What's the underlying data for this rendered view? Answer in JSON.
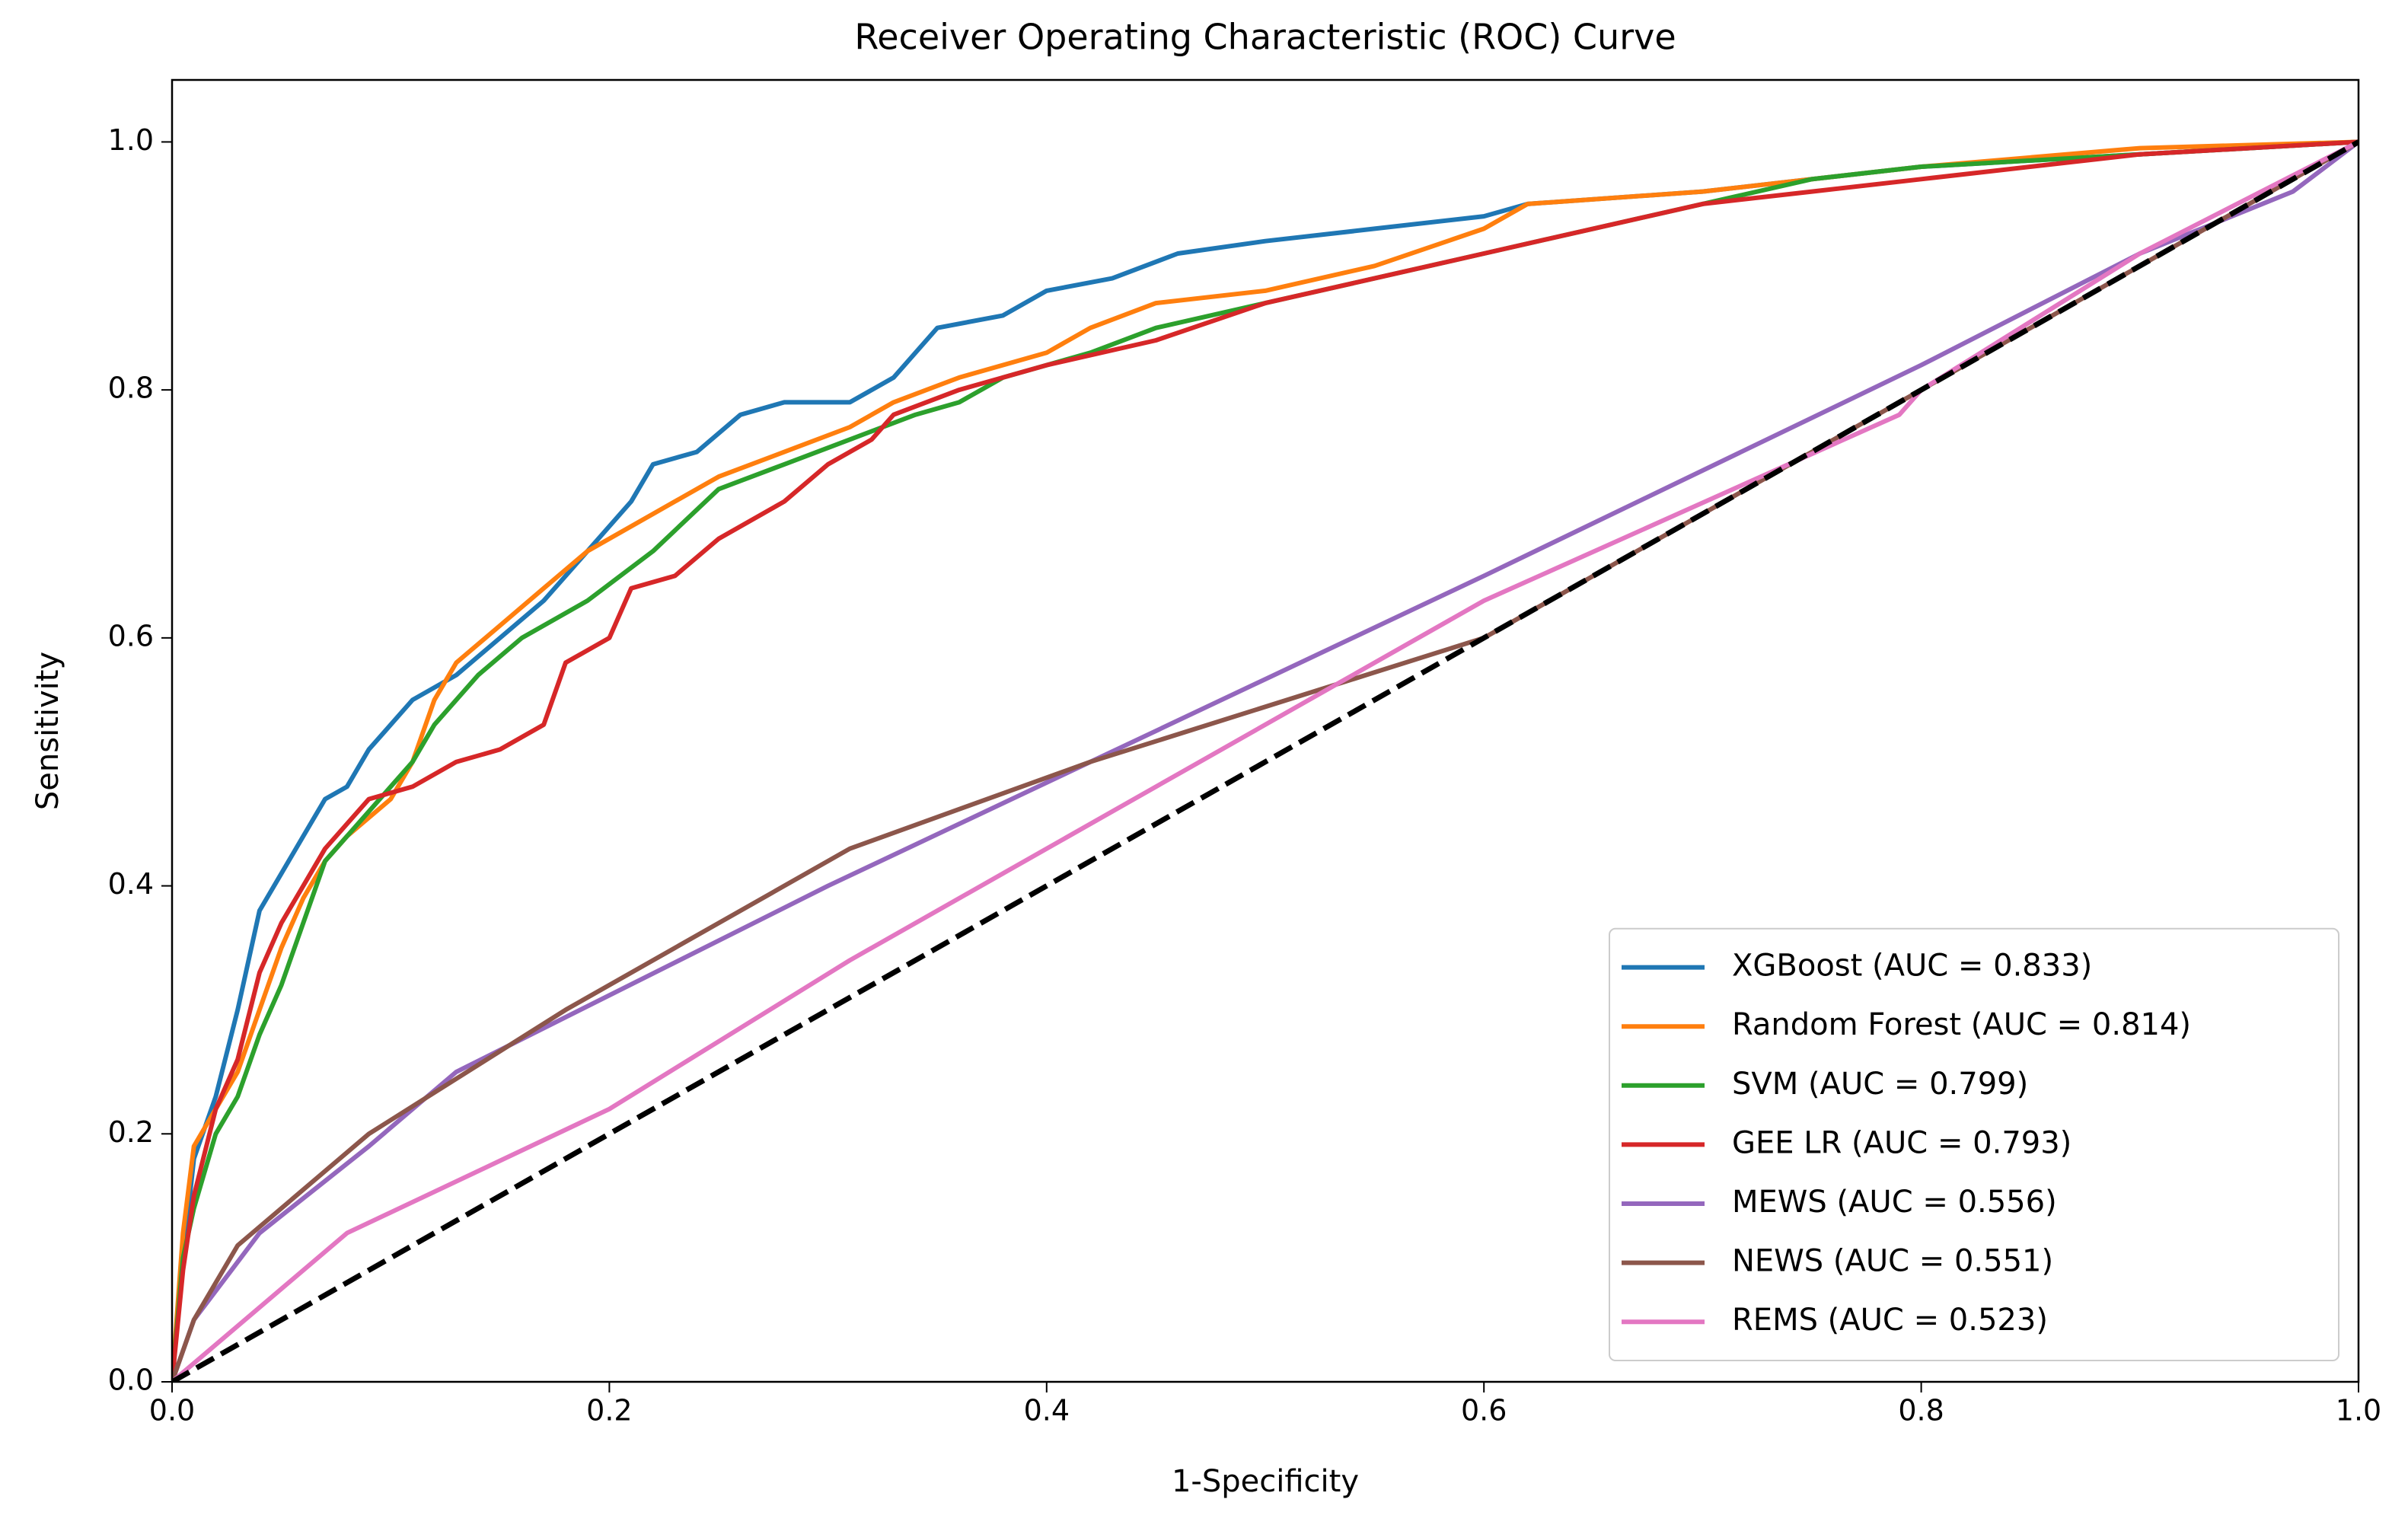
{
  "chart_data": {
    "type": "line",
    "title": "Receiver Operating Characteristic (ROC) Curve",
    "x_label": "1-Specificity",
    "y_label": "Sensitivity",
    "xlim": [
      0,
      1
    ],
    "ylim": [
      0,
      1.05
    ],
    "xticks": [
      {
        "value": 0,
        "label": "0.0"
      },
      {
        "value": 0.2,
        "label": "0.2"
      },
      {
        "value": 0.4,
        "label": "0.4"
      },
      {
        "value": 0.6,
        "label": "0.6"
      },
      {
        "value": 0.8,
        "label": "0.8"
      },
      {
        "value": 1,
        "label": "1.0"
      }
    ],
    "yticks": [
      {
        "value": 0,
        "label": "0.0"
      },
      {
        "value": 0.2,
        "label": "0.2"
      },
      {
        "value": 0.4,
        "label": "0.4"
      },
      {
        "value": 0.6,
        "label": "0.6"
      },
      {
        "value": 0.8,
        "label": "0.8"
      },
      {
        "value": 1,
        "label": "1.0"
      }
    ],
    "grid": false,
    "legend_position": "lower right",
    "series": [
      {
        "name": "XGBoost (AUC = 0.833)",
        "color": "#1f77b4",
        "x": [
          0,
          0.005,
          0.01,
          0.02,
          0.03,
          0.04,
          0.05,
          0.06,
          0.07,
          0.08,
          0.09,
          0.1,
          0.11,
          0.13,
          0.15,
          0.17,
          0.19,
          0.21,
          0.22,
          0.24,
          0.26,
          0.28,
          0.31,
          0.33,
          0.35,
          0.38,
          0.4,
          0.43,
          0.46,
          0.5,
          0.55,
          0.6,
          0.62,
          0.7,
          0.8,
          0.9,
          1
        ],
        "values": [
          0,
          0.1,
          0.18,
          0.23,
          0.3,
          0.38,
          0.41,
          0.44,
          0.47,
          0.48,
          0.51,
          0.53,
          0.55,
          0.57,
          0.6,
          0.63,
          0.67,
          0.71,
          0.74,
          0.75,
          0.78,
          0.79,
          0.79,
          0.81,
          0.85,
          0.86,
          0.88,
          0.89,
          0.91,
          0.92,
          0.93,
          0.94,
          0.95,
          0.96,
          0.98,
          0.99,
          1
        ]
      },
      {
        "name": "Random Forest (AUC = 0.814)",
        "color": "#ff7f0e",
        "x": [
          0,
          0.005,
          0.01,
          0.02,
          0.03,
          0.04,
          0.05,
          0.06,
          0.07,
          0.08,
          0.1,
          0.11,
          0.12,
          0.13,
          0.15,
          0.17,
          0.19,
          0.22,
          0.25,
          0.28,
          0.31,
          0.33,
          0.36,
          0.4,
          0.42,
          0.45,
          0.5,
          0.55,
          0.6,
          0.62,
          0.7,
          0.8,
          0.9,
          1
        ],
        "values": [
          0,
          0.12,
          0.19,
          0.22,
          0.25,
          0.3,
          0.35,
          0.39,
          0.42,
          0.44,
          0.47,
          0.5,
          0.55,
          0.58,
          0.61,
          0.64,
          0.67,
          0.7,
          0.73,
          0.75,
          0.77,
          0.79,
          0.81,
          0.83,
          0.85,
          0.87,
          0.88,
          0.9,
          0.93,
          0.95,
          0.96,
          0.98,
          0.995,
          1
        ]
      },
      {
        "name": "SVM (AUC = 0.799)",
        "color": "#2ca02c",
        "x": [
          0,
          0.005,
          0.01,
          0.02,
          0.03,
          0.04,
          0.05,
          0.06,
          0.07,
          0.09,
          0.11,
          0.12,
          0.14,
          0.16,
          0.19,
          0.22,
          0.25,
          0.28,
          0.31,
          0.34,
          0.36,
          0.38,
          0.42,
          0.45,
          0.5,
          0.55,
          0.6,
          0.65,
          0.7,
          0.75,
          0.8,
          0.9,
          1
        ],
        "values": [
          0,
          0.1,
          0.14,
          0.2,
          0.23,
          0.28,
          0.32,
          0.37,
          0.42,
          0.46,
          0.5,
          0.53,
          0.57,
          0.6,
          0.63,
          0.67,
          0.72,
          0.74,
          0.76,
          0.78,
          0.79,
          0.81,
          0.83,
          0.85,
          0.87,
          0.89,
          0.91,
          0.93,
          0.95,
          0.97,
          0.98,
          0.99,
          1
        ]
      },
      {
        "name": "GEE LR (AUC = 0.793)",
        "color": "#d62728",
        "x": [
          0,
          0.005,
          0.01,
          0.02,
          0.03,
          0.04,
          0.05,
          0.06,
          0.07,
          0.09,
          0.11,
          0.13,
          0.15,
          0.17,
          0.18,
          0.2,
          0.21,
          0.23,
          0.25,
          0.28,
          0.3,
          0.32,
          0.33,
          0.36,
          0.4,
          0.45,
          0.5,
          0.55,
          0.6,
          0.65,
          0.7,
          0.75,
          0.8,
          0.9,
          1
        ],
        "values": [
          0,
          0.09,
          0.15,
          0.22,
          0.26,
          0.33,
          0.37,
          0.4,
          0.43,
          0.47,
          0.48,
          0.5,
          0.51,
          0.53,
          0.58,
          0.6,
          0.64,
          0.65,
          0.68,
          0.71,
          0.74,
          0.76,
          0.78,
          0.8,
          0.82,
          0.84,
          0.87,
          0.89,
          0.91,
          0.93,
          0.95,
          0.96,
          0.97,
          0.99,
          1
        ]
      },
      {
        "name": "MEWS (AUC = 0.556)",
        "color": "#9467bd",
        "x": [
          0,
          0.01,
          0.04,
          0.09,
          0.13,
          0.3,
          0.6,
          0.8,
          0.9,
          0.97,
          1
        ],
        "values": [
          0,
          0.05,
          0.12,
          0.19,
          0.25,
          0.4,
          0.65,
          0.82,
          0.91,
          0.96,
          1
        ]
      },
      {
        "name": "NEWS (AUC = 0.551)",
        "color": "#8c564b",
        "x": [
          0,
          0.01,
          0.03,
          0.09,
          0.18,
          0.31,
          0.42,
          0.6,
          0.7,
          0.8,
          1
        ],
        "values": [
          0,
          0.05,
          0.11,
          0.2,
          0.3,
          0.43,
          0.5,
          0.6,
          0.7,
          0.8,
          1
        ]
      },
      {
        "name": "REMS (AUC = 0.523)",
        "color": "#e377c2",
        "x": [
          0,
          0.08,
          0.2,
          0.31,
          0.6,
          0.79,
          0.8,
          0.9,
          1
        ],
        "values": [
          0,
          0.12,
          0.22,
          0.34,
          0.63,
          0.78,
          0.8,
          0.91,
          1
        ]
      }
    ],
    "reference_line": {
      "x": [
        0,
        1
      ],
      "values": [
        0,
        1
      ],
      "color": "#000000",
      "style": "dashed"
    }
  }
}
